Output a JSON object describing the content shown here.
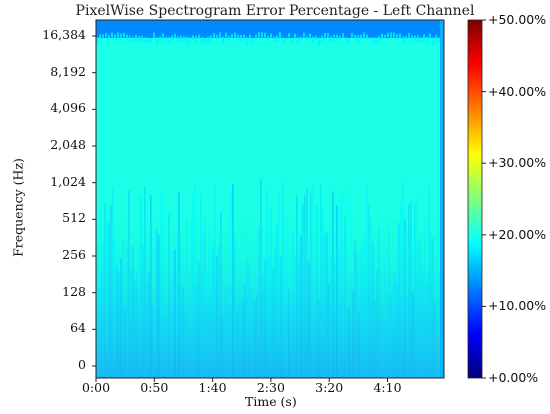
{
  "chart_data": {
    "type": "heatmap",
    "title": "PixelWise Spectrogram Error Percentage - Left Channel",
    "xlabel": "Time (s)",
    "ylabel": "Frequency (Hz)",
    "x_ticks": [
      "0:00",
      "0:50",
      "1:40",
      "2:30",
      "3:20",
      "4:10"
    ],
    "y_ticks": [
      "0",
      "64",
      "128",
      "256",
      "512",
      "1,024",
      "2,048",
      "4,096",
      "8,192",
      "16,384"
    ],
    "y_scale": "log2",
    "colorbar": {
      "colormap": "jet",
      "range": [
        0,
        50
      ],
      "ticks": [
        "+0.00%",
        "+10.00%",
        "+20.00%",
        "+30.00%",
        "+40.00%",
        "+50.00%"
      ]
    },
    "typical_value_pct": 20,
    "low_frequency_value_pct": 15,
    "top_band_value_pct": 13
  }
}
